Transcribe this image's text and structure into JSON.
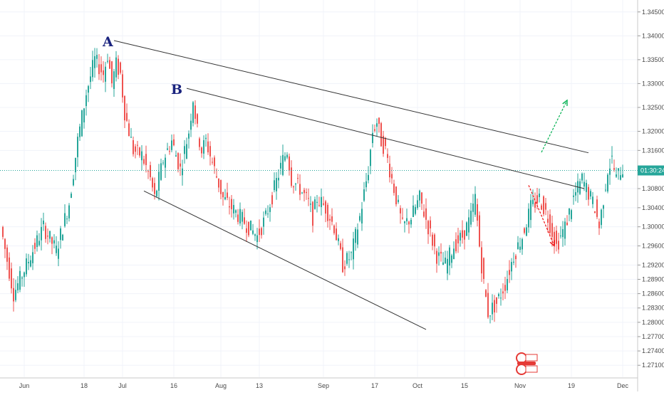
{
  "chart_data": {
    "type": "candlestick",
    "title": "",
    "xlabel": "",
    "ylabel": "",
    "ylim": [
      1.2685,
      1.3475
    ],
    "x_ticks": [
      "Jun",
      "18",
      "Jul",
      "16",
      "Aug",
      "13",
      "Sep",
      "17",
      "Oct",
      "15",
      "Nov",
      "19",
      "Dec"
    ],
    "y_ticks": [
      "1.34500",
      "1.34000",
      "1.33500",
      "1.33000",
      "1.32500",
      "1.32000",
      "1.31600",
      "1.30800",
      "1.30400",
      "1.30000",
      "1.29600",
      "1.29200",
      "1.28900",
      "1.28600",
      "1.28300",
      "1.28000",
      "1.27700",
      "1.27400",
      "1.27100"
    ],
    "current_price": 1.3118,
    "countdown": "01:30:24",
    "up_color": "#26a69a",
    "down_color": "#ef5350",
    "grid": true,
    "price_path": [
      [
        0,
        1.3
      ],
      [
        3,
        1.286
      ],
      [
        6,
        1.292
      ],
      [
        10,
        1.3
      ],
      [
        13,
        1.295
      ],
      [
        16,
        1.305
      ],
      [
        18,
        1.318
      ],
      [
        20,
        1.328
      ],
      [
        22,
        1.335
      ],
      [
        24,
        1.332
      ],
      [
        25,
        1.336
      ],
      [
        26,
        1.33
      ],
      [
        27,
        1.334
      ],
      [
        28,
        1.332
      ],
      [
        29,
        1.324
      ],
      [
        31,
        1.316
      ],
      [
        33,
        1.315
      ],
      [
        35,
        1.31
      ],
      [
        36,
        1.306
      ],
      [
        38,
        1.314
      ],
      [
        40,
        1.318
      ],
      [
        42,
        1.312
      ],
      [
        44,
        1.32
      ],
      [
        45,
        1.327
      ],
      [
        46,
        1.32
      ],
      [
        47,
        1.316
      ],
      [
        48,
        1.318
      ],
      [
        50,
        1.312
      ],
      [
        52,
        1.306
      ],
      [
        54,
        1.304
      ],
      [
        56,
        1.302
      ],
      [
        58,
        1.3
      ],
      [
        60,
        1.298
      ],
      [
        62,
        1.302
      ],
      [
        64,
        1.308
      ],
      [
        66,
        1.314
      ],
      [
        67,
        1.316
      ],
      [
        68,
        1.31
      ],
      [
        70,
        1.308
      ],
      [
        72,
        1.305
      ],
      [
        73,
        1.302
      ],
      [
        74,
        1.306
      ],
      [
        76,
        1.304
      ],
      [
        78,
        1.3
      ],
      [
        79,
        1.296
      ],
      [
        80,
        1.292
      ],
      [
        82,
        1.294
      ],
      [
        84,
        1.302
      ],
      [
        86,
        1.312
      ],
      [
        87,
        1.32
      ],
      [
        88,
        1.322
      ],
      [
        89,
        1.318
      ],
      [
        90,
        1.316
      ],
      [
        91,
        1.312
      ],
      [
        93,
        1.304
      ],
      [
        94,
        1.3
      ],
      [
        96,
        1.302
      ],
      [
        98,
        1.306
      ],
      [
        100,
        1.3
      ],
      [
        102,
        1.294
      ],
      [
        104,
        1.292
      ],
      [
        106,
        1.296
      ],
      [
        108,
        1.298
      ],
      [
        110,
        1.302
      ],
      [
        111,
        1.306
      ],
      [
        112,
        1.296
      ],
      [
        113,
        1.288
      ],
      [
        114,
        1.282
      ],
      [
        116,
        1.284
      ],
      [
        118,
        1.288
      ],
      [
        120,
        1.294
      ],
      [
        122,
        1.298
      ],
      [
        124,
        1.304
      ],
      [
        126,
        1.306
      ],
      [
        128,
        1.302
      ],
      [
        130,
        1.296
      ],
      [
        132,
        1.3
      ],
      [
        134,
        1.306
      ],
      [
        136,
        1.31
      ],
      [
        137,
        1.308
      ],
      [
        138,
        1.306
      ],
      [
        139,
        1.304
      ],
      [
        140,
        1.3
      ],
      [
        141,
        1.306
      ],
      [
        142,
        1.312
      ],
      [
        143,
        1.314
      ],
      [
        144,
        1.31
      ],
      [
        145,
        1.312
      ]
    ],
    "candles": {
      "start_index": 0,
      "end_index": 145,
      "first_label_index": 0
    },
    "x_tick_index": [
      0,
      14,
      23,
      35,
      46,
      55,
      70,
      82,
      92,
      103,
      116,
      128,
      140
    ],
    "trendlines": [
      {
        "name": "upper-line-a",
        "from": [
          21,
          1.339
        ],
        "to": [
          132,
          1.3155
        ]
      },
      {
        "name": "upper-line-b",
        "from": [
          38,
          1.329
        ],
        "to": [
          131,
          1.308
        ]
      },
      {
        "name": "lower-line",
        "from": [
          28,
          1.3075
        ],
        "to": [
          94,
          1.2785
        ]
      }
    ],
    "annotations": [
      {
        "text": "A",
        "index": 20,
        "value": 1.339,
        "color": "#1a237e"
      },
      {
        "text": "B",
        "index": 36,
        "value": 1.329,
        "color": "#1a237e"
      }
    ],
    "arrows": [
      {
        "name": "green-arrow",
        "from": [
          121,
          1.3156
        ],
        "to": [
          127,
          1.3265
        ],
        "color": "#00b050"
      },
      {
        "name": "red-arrow",
        "from": [
          118,
          1.3087
        ],
        "to": [
          124,
          1.296
        ],
        "color": "#ee1111"
      }
    ]
  }
}
